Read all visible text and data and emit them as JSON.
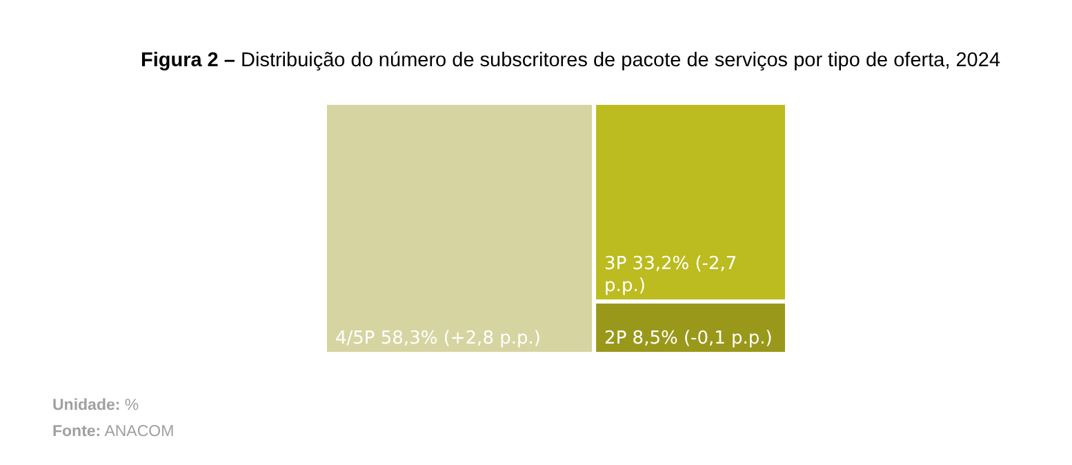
{
  "chart_data": {
    "type": "other",
    "title": "Figura 2 – Distribuição do número de subscritores de pacote de serviços por tipo de oferta, 2024",
    "categories": [
      "4/5P",
      "3P",
      "2P"
    ],
    "values": [
      58.3,
      33.2,
      8.5
    ],
    "colors": [
      "#d6d4a0",
      "#bcbb1f",
      "#9a981a"
    ],
    "value_labels": [
      "58,3% (+2,8 p.p.)",
      "33,2% (-2,7 p.p.)",
      "8,5% (-0,1 p.p.)"
    ],
    "annotations": [
      "Unidade: %",
      "Fonte: ANACOM"
    ]
  }
}
